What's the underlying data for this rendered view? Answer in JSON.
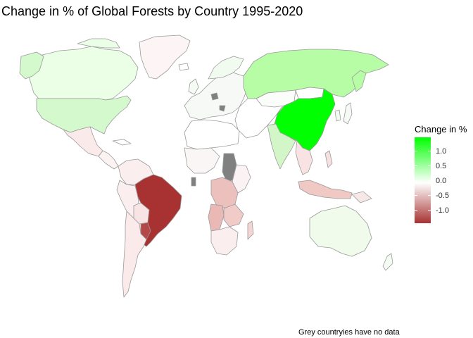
{
  "title": "Change in % of Global Forests by Country 1995-2020",
  "caption": "Grey countryies have no data",
  "legend": {
    "title": "Change in %",
    "ticks": [
      "1.0",
      "0.5",
      "0.0",
      "-0.5",
      "-1.0"
    ],
    "colors": {
      "high": "#00ff00",
      "mid": "#ffffff",
      "low": "#a83232"
    }
  },
  "colors": {
    "no_data": "#808080",
    "border": "#9a9a9a"
  },
  "chart_data": {
    "type": "choropleth",
    "title": "Change in % of Global Forests by Country 1995-2020",
    "legend_title": "Change in %",
    "color_scale": {
      "min": -1.25,
      "max": 1.4,
      "midpoint": 0,
      "low": "#a83232",
      "mid": "#ffffff",
      "high": "#00ff00"
    },
    "regions": [
      {
        "country": "China",
        "value": 1.4
      },
      {
        "country": "Russia",
        "value": 0.55
      },
      {
        "country": "United States",
        "value": 0.3
      },
      {
        "country": "Canada",
        "value": 0.15
      },
      {
        "country": "India",
        "value": 0.3
      },
      {
        "country": "Australia",
        "value": 0.05
      },
      {
        "country": "Brazil",
        "value": -1.25
      },
      {
        "country": "Paraguay",
        "value": -1.1
      },
      {
        "country": "Argentina",
        "value": -0.15
      },
      {
        "country": "Bolivia",
        "value": -0.2
      },
      {
        "country": "Peru",
        "value": -0.1
      },
      {
        "country": "Colombia",
        "value": -0.1
      },
      {
        "country": "Venezuela",
        "value": -0.1
      },
      {
        "country": "Mexico",
        "value": -0.1
      },
      {
        "country": "Greenland",
        "value": -0.02
      },
      {
        "country": "DR Congo",
        "value": -0.3
      },
      {
        "country": "Angola",
        "value": -0.35
      },
      {
        "country": "Zambia",
        "value": -0.3
      },
      {
        "country": "Tanzania",
        "value": -0.25
      },
      {
        "country": "Mozambique",
        "value": -0.25
      },
      {
        "country": "Indonesia",
        "value": -0.35
      },
      {
        "country": "Myanmar",
        "value": -0.2
      },
      {
        "country": "Sudan",
        "value": null
      },
      {
        "country": "South Sudan",
        "value": null
      },
      {
        "country": "Liberia",
        "value": null
      }
    ]
  }
}
